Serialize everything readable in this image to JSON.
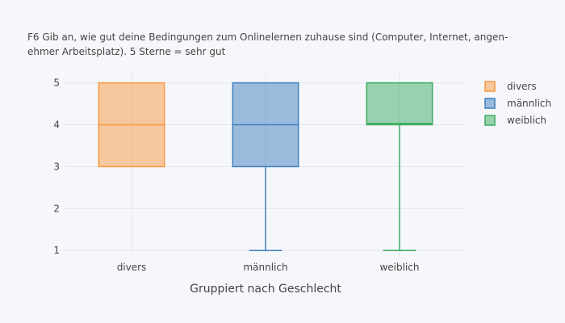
{
  "chart_data": {
    "type": "box",
    "title": "F6 Gib an, wie gut deine Bedingungen zum Onlinelernen zuhause sind (Computer, Internet, angen-\nehmer Arbeitsplatz). 5 Sterne = sehr gut",
    "xlabel": "Gruppiert nach Geschlecht",
    "ylabel": "",
    "categories": [
      "divers",
      "männlich",
      "weiblich"
    ],
    "y_ticks": [
      1,
      2,
      3,
      4,
      5
    ],
    "ylim": [
      0.85,
      5.3
    ],
    "grid": true,
    "legend_position": "top-right",
    "series": [
      {
        "name": "divers",
        "color": "#f7983f",
        "min": 3,
        "q1": 3,
        "median": 4,
        "q3": 5,
        "max": 5
      },
      {
        "name": "männlich",
        "color": "#3f7fbf",
        "min": 1,
        "q1": 3,
        "median": 4,
        "q3": 5,
        "max": 5
      },
      {
        "name": "weiblich",
        "color": "#3aab5f",
        "min": 1,
        "q1": 4,
        "median": 4.03,
        "q3": 5,
        "max": 5
      }
    ]
  }
}
